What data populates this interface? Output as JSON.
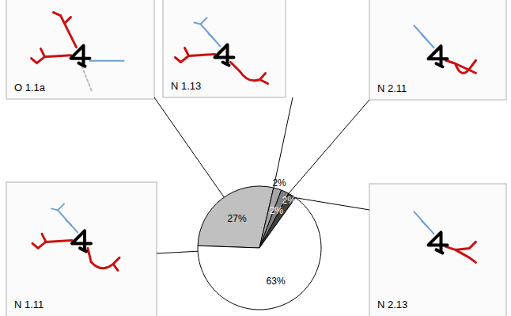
{
  "chart_data": {
    "type": "pie",
    "categories": [
      "O 1.1a",
      "N 1.13",
      "N 2.11",
      "N 2.13",
      "N 1.11"
    ],
    "values": [
      27,
      2,
      2,
      2,
      63
    ],
    "value_labels": [
      "27%",
      "2%",
      "2%",
      "2%",
      "63%"
    ],
    "colors": [
      "#c0c0c0",
      "#a6a6a6",
      "#7f7f7f",
      "#404040",
      "#ffffff"
    ],
    "data_labels": true
  }
}
